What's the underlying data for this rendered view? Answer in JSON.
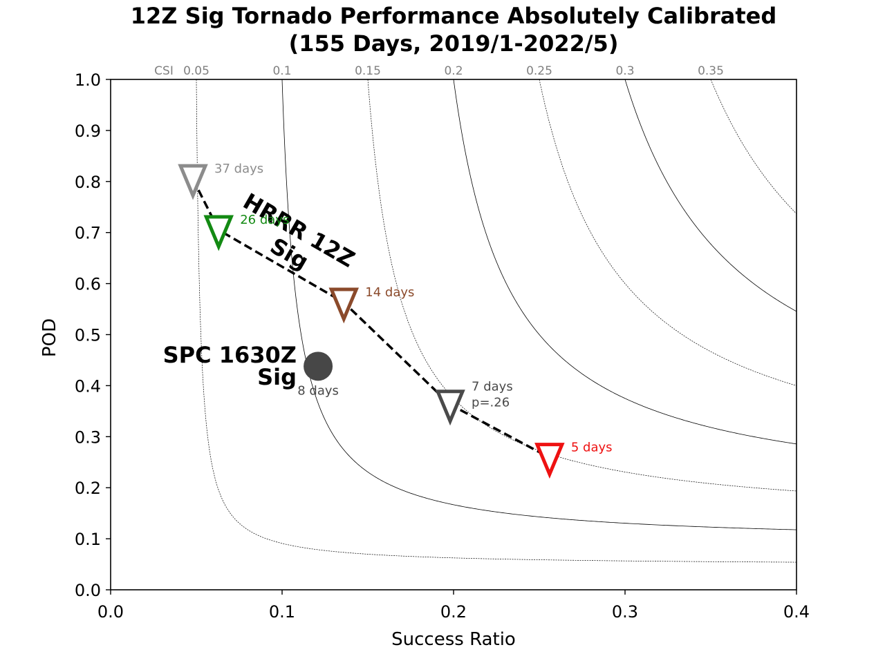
{
  "chart_data": {
    "type": "scatter",
    "title_line1": "12Z Sig Tornado Performance Absolutely Calibrated",
    "title_line2": "(155 Days, 2019/1-2022/5)",
    "xlabel": "Success Ratio",
    "ylabel": "POD",
    "xlim": [
      0.0,
      0.4
    ],
    "ylim": [
      0.0,
      1.0
    ],
    "x_ticks": [
      "0.0",
      "0.1",
      "0.2",
      "0.3",
      "0.4"
    ],
    "y_ticks": [
      "0.0",
      "0.1",
      "0.2",
      "0.3",
      "0.4",
      "0.5",
      "0.6",
      "0.7",
      "0.8",
      "0.9",
      "1.0"
    ],
    "csi_prefix": "CSI",
    "csi_contours": [
      {
        "csi": 0.05,
        "label": "0.05",
        "style": "dashed"
      },
      {
        "csi": 0.1,
        "label": "0.1",
        "style": "solid"
      },
      {
        "csi": 0.15,
        "label": "0.15",
        "style": "dashed"
      },
      {
        "csi": 0.2,
        "label": "0.2",
        "style": "solid"
      },
      {
        "csi": 0.25,
        "label": "0.25",
        "style": "dashed"
      },
      {
        "csi": 0.3,
        "label": "0.3",
        "style": "solid"
      },
      {
        "csi": 0.35,
        "label": "0.35",
        "style": "dashed"
      }
    ],
    "series": [
      {
        "name_line1": "HRRR 12Z",
        "name_line2": "Sig",
        "marker": "triangle-down",
        "line": "dashed",
        "points": [
          {
            "x": 0.048,
            "y": 0.805,
            "label": "37 days",
            "label2": "",
            "color": "#8c8c8c"
          },
          {
            "x": 0.063,
            "y": 0.705,
            "label": "26 days",
            "label2": "",
            "color": "#138a13"
          },
          {
            "x": 0.136,
            "y": 0.563,
            "label": "14 days",
            "label2": "",
            "color": "#8b4a2b"
          },
          {
            "x": 0.198,
            "y": 0.363,
            "label": "7 days",
            "label2": "p=.26",
            "color": "#4a4a4a"
          },
          {
            "x": 0.256,
            "y": 0.259,
            "label": "5 days",
            "label2": "",
            "color": "#ee1111"
          }
        ]
      },
      {
        "name_line1": "SPC 1630Z",
        "name_line2": "Sig",
        "marker": "circle",
        "points": [
          {
            "x": 0.121,
            "y": 0.438,
            "label": "8 days",
            "color": "#474747"
          }
        ]
      }
    ]
  }
}
